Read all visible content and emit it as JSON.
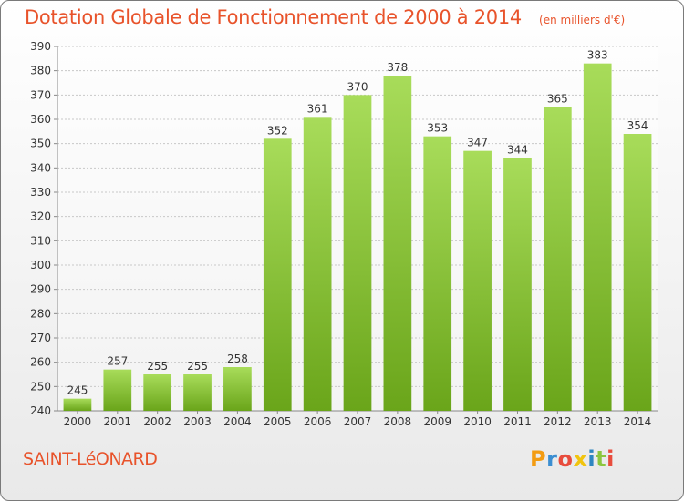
{
  "header": {
    "title": "Dotation Globale de Fonctionnement de 2000 à 2014",
    "subtitle": "(en milliers d'€)"
  },
  "footer": {
    "commune": "SAINT-LéONARD",
    "logo_letters": [
      "P",
      "r",
      "o",
      "x",
      "i",
      "t",
      "i"
    ],
    "logo_colors": [
      "#f39c12",
      "#3b8ed1",
      "#e84c3d",
      "#f1c40f",
      "#2e86c1",
      "#8cc63f",
      "#e84c3d"
    ]
  },
  "colors": {
    "bar_light": "#a8dc5a",
    "bar_dark": "#6aa51a",
    "title": "#e8532b",
    "grid": "#c8c8c8",
    "axis_text": "#333333"
  },
  "chart_data": {
    "type": "bar",
    "categories": [
      "2000",
      "2001",
      "2002",
      "2003",
      "2004",
      "2005",
      "2006",
      "2007",
      "2008",
      "2009",
      "2010",
      "2011",
      "2012",
      "2013",
      "2014"
    ],
    "values": [
      245,
      257,
      255,
      255,
      258,
      352,
      361,
      370,
      378,
      353,
      347,
      344,
      365,
      383,
      354
    ],
    "ylim": [
      240,
      390
    ],
    "yticks": [
      240,
      250,
      260,
      270,
      280,
      290,
      300,
      310,
      320,
      330,
      340,
      350,
      360,
      370,
      380,
      390
    ],
    "grid": true,
    "data_labels": true
  }
}
